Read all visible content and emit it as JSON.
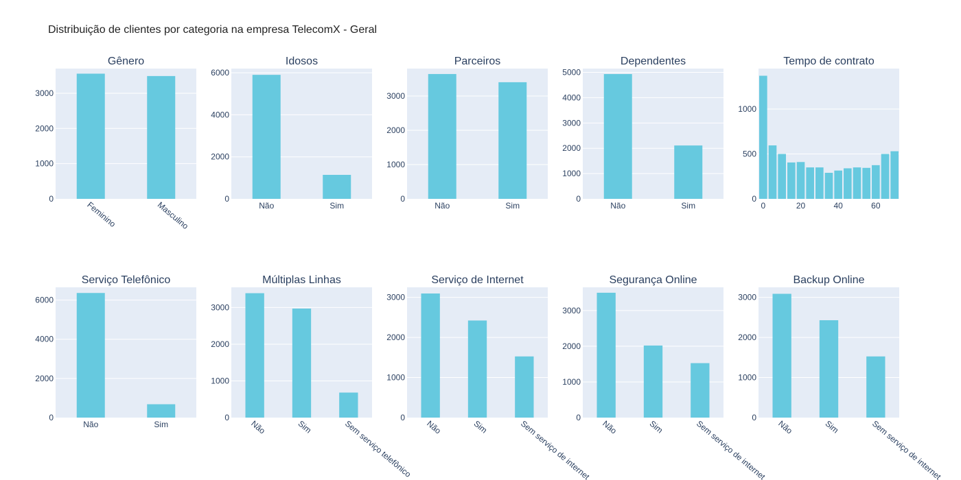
{
  "page": {
    "title": "Distribuição de clientes por categoria na empresa TelecomX - Geral"
  },
  "colors": {
    "bar": "#66c9df",
    "plot_bg": "#e5ecf6",
    "grid": "#ffffff",
    "text": "#2a3f5f"
  },
  "chart_data": [
    {
      "type": "bar",
      "title": "Gênero",
      "categories": [
        "Feminino",
        "Masculino"
      ],
      "values": [
        3555,
        3488
      ],
      "ylim": [
        0,
        3700
      ],
      "yticks": [
        0,
        1000,
        2000,
        3000
      ],
      "rotate_labels": true
    },
    {
      "type": "bar",
      "title": "Idosos",
      "categories": [
        "Não",
        "Sim"
      ],
      "values": [
        5901,
        1142
      ],
      "ylim": [
        0,
        6200
      ],
      "yticks": [
        0,
        2000,
        4000,
        6000
      ],
      "rotate_labels": false
    },
    {
      "type": "bar",
      "title": "Parceiros",
      "categories": [
        "Não",
        "Sim"
      ],
      "values": [
        3641,
        3402
      ],
      "ylim": [
        0,
        3800
      ],
      "yticks": [
        0,
        1000,
        2000,
        3000
      ],
      "rotate_labels": false
    },
    {
      "type": "bar",
      "title": "Dependentes",
      "categories": [
        "Não",
        "Sim"
      ],
      "values": [
        4933,
        2110
      ],
      "ylim": [
        0,
        5150
      ],
      "yticks": [
        0,
        1000,
        2000,
        3000,
        4000,
        5000
      ],
      "rotate_labels": false
    },
    {
      "type": "bar",
      "title": "Tempo de contrato",
      "histogram": true,
      "x": [
        0,
        5,
        10,
        15,
        20,
        25,
        30,
        35,
        40,
        45,
        50,
        55,
        60,
        65,
        70
      ],
      "values": [
        1370,
        595,
        500,
        405,
        410,
        350,
        350,
        290,
        315,
        340,
        350,
        345,
        375,
        500,
        530
      ],
      "xlim": [
        -2.5,
        72.5
      ],
      "xticks": [
        0,
        20,
        40,
        60
      ],
      "ylim": [
        0,
        1450
      ],
      "yticks": [
        0,
        500,
        1000
      ]
    },
    {
      "type": "bar",
      "title": "Serviço Telefônico",
      "categories": [
        "Não",
        "Sim"
      ],
      "values": [
        6361,
        682
      ],
      "ylim": [
        0,
        6650
      ],
      "yticks": [
        0,
        2000,
        4000,
        6000
      ],
      "rotate_labels": false
    },
    {
      "type": "bar",
      "title": "Múltiplas Linhas",
      "categories": [
        "Não",
        "Sim",
        "Sem serviço telefônico"
      ],
      "values": [
        3390,
        2971,
        682
      ],
      "ylim": [
        0,
        3550
      ],
      "yticks": [
        0,
        1000,
        2000,
        3000
      ],
      "rotate_labels": true
    },
    {
      "type": "bar",
      "title": "Serviço de Internet",
      "categories": [
        "Não",
        "Sim",
        "Sem serviço de internet"
      ],
      "values": [
        3096,
        2422,
        1526
      ],
      "ylim": [
        0,
        3250
      ],
      "yticks": [
        0,
        1000,
        2000,
        3000
      ],
      "rotate_labels": true
    },
    {
      "type": "bar",
      "title": "Segurança Online",
      "categories": [
        "Não",
        "Sim",
        "Sem serviço de internet"
      ],
      "values": [
        3498,
        2019,
        1526
      ],
      "ylim": [
        0,
        3650
      ],
      "yticks": [
        0,
        1000,
        2000,
        3000
      ],
      "rotate_labels": true
    },
    {
      "type": "bar",
      "title": "Backup Online",
      "categories": [
        "Não",
        "Sim",
        "Sem serviço de internet"
      ],
      "values": [
        3088,
        2429,
        1526
      ],
      "ylim": [
        0,
        3250
      ],
      "yticks": [
        0,
        1000,
        2000,
        3000
      ],
      "rotate_labels": true
    }
  ]
}
